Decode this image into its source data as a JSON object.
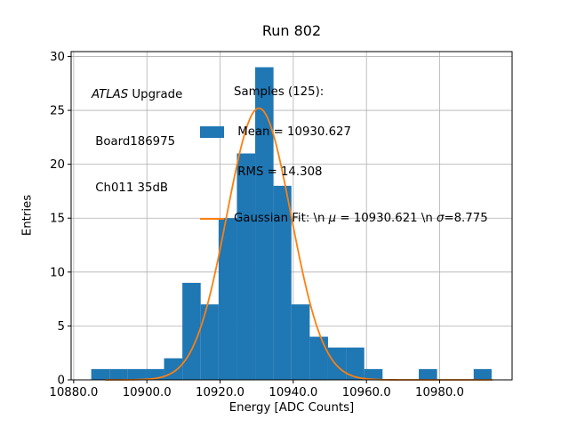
{
  "title": "Run 802",
  "annotation": {
    "experiment": "ATLAS",
    "experiment_suffix": " Upgrade",
    "board": " Board186975",
    "channel": " Ch011 35dB"
  },
  "legend": {
    "samples": {
      "line1": "Samples (125):",
      "line2": " Mean = 10930.627",
      "line3": " RMS = 14.308"
    },
    "fit": {
      "part1": "Gaussian Fit: \\n ",
      "mu_symbol": "μ",
      "part2": " = 10930.621 \\n ",
      "sigma_symbol": "σ",
      "part3": "=8.775"
    }
  },
  "chart_data": {
    "type": "bar",
    "subtype": "histogram",
    "title": "Run 802",
    "xlabel": "Energy [ADC Counts]",
    "ylabel": "Entries",
    "n_samples": 125,
    "mean": 10930.627,
    "rms": 14.308,
    "xlim": [
      10879.3,
      10999.8
    ],
    "ylim": [
      0,
      30.45
    ],
    "xticks": [
      10880,
      10900,
      10920,
      10940,
      10960,
      10980
    ],
    "xtick_labels": [
      "10880.0",
      "10900.0",
      "10920.0",
      "10940.0",
      "10960.0",
      "10980.0"
    ],
    "yticks": [
      0,
      5,
      10,
      15,
      20,
      25,
      30
    ],
    "ytick_labels": [
      "0",
      "5",
      "10",
      "15",
      "20",
      "25",
      "30"
    ],
    "bin_edges": [
      10884.8,
      10889.8,
      10894.8,
      10899.7,
      10904.7,
      10909.7,
      10914.7,
      10919.6,
      10924.6,
      10929.6,
      10934.6,
      10939.5,
      10944.5,
      10949.5,
      10954.4,
      10959.4,
      10964.4,
      10969.4,
      10974.3,
      10979.3,
      10984.3,
      10989.3,
      10994.2
    ],
    "counts": [
      1,
      1,
      1,
      1,
      2,
      9,
      7,
      15,
      21,
      29,
      18,
      7,
      4,
      3,
      3,
      1,
      0,
      0,
      1,
      0,
      0,
      1
    ],
    "gaussian_fit": {
      "mu": 10930.621,
      "sigma": 8.775,
      "amplitude": 25.2,
      "x_start": 10888.5,
      "x_end": 10994.5
    },
    "grid": true,
    "legend_position": "upper center, frameless",
    "colors": {
      "bar": "#1f77b4",
      "fit": "#ff7f0e",
      "grid": "#b0b0b0",
      "spine": "#000000",
      "background": "#ffffff"
    }
  }
}
